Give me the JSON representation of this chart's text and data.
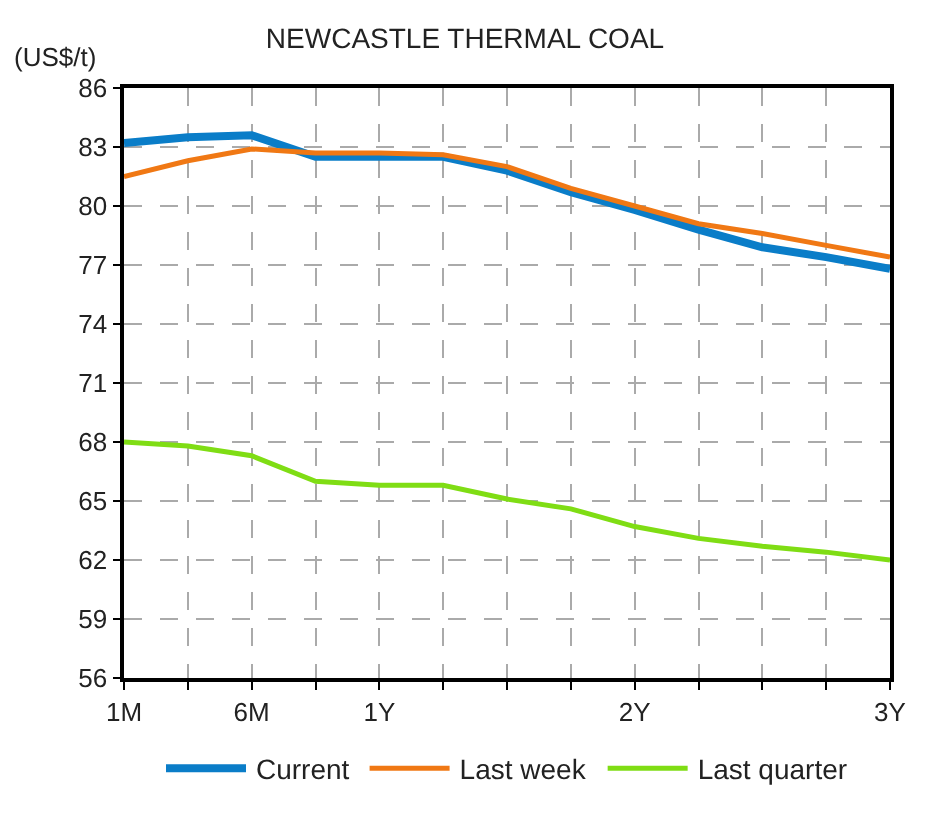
{
  "chart_data": {
    "type": "line",
    "title": "NEWCASTLE THERMAL COAL",
    "ylabel": "(US$/t)",
    "categories": [
      "1M",
      null,
      "6M",
      null,
      "1Y",
      null,
      null,
      null,
      "2Y",
      null,
      null,
      null,
      "3Y"
    ],
    "ylim": [
      56,
      86
    ],
    "yticks": [
      56,
      59,
      62,
      65,
      68,
      71,
      74,
      77,
      80,
      83,
      86
    ],
    "grid": true,
    "legend": "bottom",
    "marker": "none",
    "line_style": "solid",
    "series": [
      {
        "name": "Current",
        "color": "#0a7dc8",
        "values": [
          83.2,
          83.5,
          83.6,
          82.5,
          82.5,
          82.5,
          81.8,
          80.7,
          79.8,
          78.8,
          77.9,
          77.4,
          76.8
        ]
      },
      {
        "name": "Last week",
        "color": "#f07814",
        "values": [
          81.5,
          82.3,
          82.9,
          82.7,
          82.7,
          82.6,
          82.0,
          80.9,
          80.0,
          79.1,
          78.6,
          78.0,
          77.4
        ]
      },
      {
        "name": "Last quarter",
        "color": "#7fdd14",
        "values": [
          68.0,
          67.8,
          67.3,
          66.0,
          65.8,
          65.8,
          65.1,
          64.6,
          63.7,
          63.1,
          62.7,
          62.4,
          62.0
        ]
      }
    ]
  }
}
